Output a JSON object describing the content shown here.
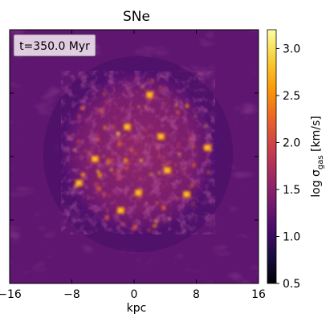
{
  "chart_data": {
    "type": "heatmap",
    "title": "SNe",
    "annotation": "t=350.0 Myr",
    "xlabel": "kpc",
    "xlim": [
      -16,
      16
    ],
    "x_ticks": [
      "−16",
      "−8",
      "0",
      "8",
      "16"
    ],
    "x_tick_values": [
      -16,
      -8,
      0,
      8,
      16
    ],
    "y_tick_values": [
      -8,
      0,
      8
    ],
    "colorbar": {
      "label_prefix": "log σ",
      "label_sub": "gas",
      "label_suffix": " [km/s]",
      "range": [
        0.5,
        3.2
      ],
      "ticks": [
        "0.5",
        "1.0",
        "1.5",
        "2.0",
        "2.5",
        "3.0"
      ],
      "tick_values": [
        0.5,
        1.0,
        1.5,
        2.0,
        2.5,
        3.0
      ],
      "colormap": "inferno"
    },
    "field_description_levels": {
      "background": 1.3,
      "disk_interior": 1.7,
      "hot_spots_max": 3.1
    },
    "colors": {
      "cmap_stops": [
        "#000004",
        "#1b0c41",
        "#4a0c6b",
        "#781c6d",
        "#a52c60",
        "#cf4446",
        "#ed6925",
        "#fb9b06",
        "#f7d13d",
        "#fcffa4"
      ]
    }
  }
}
